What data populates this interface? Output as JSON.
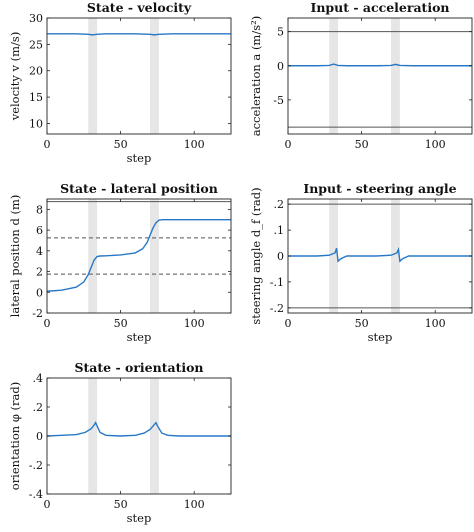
{
  "chart_data": [
    {
      "type": "line",
      "title": "State - velocity",
      "xlabel": "step",
      "ylabel": "velocity v (m/s)",
      "xlim": [
        0,
        125
      ],
      "ylim": [
        8,
        30
      ],
      "xticks": [
        0,
        50,
        100
      ],
      "yticks": [
        10,
        15,
        20,
        25,
        30
      ],
      "shaded": [
        [
          28,
          34
        ],
        [
          70,
          76
        ]
      ],
      "hlines": [],
      "series": [
        {
          "color": "#2878c8",
          "x": [
            0,
            10,
            20,
            28,
            31,
            34,
            40,
            50,
            60,
            70,
            73,
            76,
            85,
            100,
            110,
            125
          ],
          "y": [
            27.0,
            27.0,
            27.0,
            26.9,
            26.8,
            26.9,
            27.0,
            27.0,
            27.0,
            26.9,
            26.8,
            26.9,
            27.0,
            27.0,
            27.0,
            27.0
          ]
        }
      ]
    },
    {
      "type": "line",
      "title": "Input - acceleration",
      "xlabel": "",
      "ylabel": "acceleration a (m/s²)",
      "xlim": [
        0,
        125
      ],
      "ylim": [
        -10,
        7
      ],
      "xticks": [
        0,
        50,
        100
      ],
      "yticks": [
        -5,
        0,
        5
      ],
      "shaded": [
        [
          28,
          34
        ],
        [
          70,
          76
        ]
      ],
      "hlines": [
        {
          "y": 5,
          "style": "solid"
        },
        {
          "y": -9,
          "style": "solid"
        }
      ],
      "series": [
        {
          "color": "#2878c8",
          "x": [
            0,
            20,
            28,
            31,
            34,
            40,
            60,
            70,
            73,
            76,
            85,
            125
          ],
          "y": [
            0,
            0,
            0.05,
            0.25,
            0.05,
            0,
            0,
            0.05,
            0.2,
            0.05,
            0,
            0
          ]
        }
      ]
    },
    {
      "type": "line",
      "title": "State - lateral position",
      "xlabel": "step",
      "ylabel": "lateral position d (m)",
      "xlim": [
        0,
        125
      ],
      "ylim": [
        -2,
        9
      ],
      "xticks": [
        0,
        50,
        100
      ],
      "yticks": [
        -2,
        0,
        2,
        4,
        6,
        8
      ],
      "shaded": [
        [
          28,
          34
        ],
        [
          70,
          76
        ]
      ],
      "hlines": [
        {
          "y": 8.75,
          "style": "solid"
        },
        {
          "y": 5.25,
          "style": "dashed"
        },
        {
          "y": 1.75,
          "style": "dashed"
        }
      ],
      "series": [
        {
          "color": "#2878c8",
          "x": [
            0,
            10,
            20,
            25,
            28,
            30,
            32,
            34,
            36,
            40,
            50,
            60,
            65,
            68,
            70,
            72,
            74,
            76,
            78,
            85,
            100,
            125
          ],
          "y": [
            0.1,
            0.2,
            0.5,
            1.0,
            1.7,
            2.4,
            3.1,
            3.45,
            3.5,
            3.52,
            3.6,
            3.8,
            4.2,
            4.8,
            5.5,
            6.2,
            6.7,
            6.95,
            7.0,
            7.0,
            7.0,
            7.0
          ]
        }
      ]
    },
    {
      "type": "line",
      "title": "Input - steering angle",
      "xlabel": "step",
      "ylabel": "steering angle d_f (rad)",
      "xlim": [
        0,
        125
      ],
      "ylim": [
        -0.22,
        0.22
      ],
      "xticks": [
        0,
        50,
        100
      ],
      "yticks": [
        -0.2,
        -0.1,
        0,
        0.1,
        0.2
      ],
      "shaded": [
        [
          28,
          34
        ],
        [
          70,
          76
        ]
      ],
      "hlines": [
        {
          "y": 0.2,
          "style": "solid"
        },
        {
          "y": -0.2,
          "style": "solid"
        }
      ],
      "series": [
        {
          "color": "#2878c8",
          "x": [
            0,
            20,
            28,
            32,
            33,
            34,
            36,
            40,
            60,
            70,
            74,
            75,
            76,
            78,
            82,
            125
          ],
          "y": [
            0,
            0,
            0.003,
            0.012,
            0.03,
            -0.02,
            -0.01,
            0,
            0,
            0.003,
            0.012,
            0.025,
            -0.02,
            -0.01,
            0,
            0
          ]
        }
      ]
    },
    {
      "type": "line",
      "title": "State - orientation",
      "xlabel": "step",
      "ylabel": "orientation φ (rad)",
      "xlim": [
        0,
        125
      ],
      "ylim": [
        -0.4,
        0.4
      ],
      "xticks": [
        0,
        50,
        100
      ],
      "yticks": [
        -0.4,
        -0.2,
        0,
        0.2,
        0.4
      ],
      "shaded": [
        [
          28,
          34
        ],
        [
          70,
          76
        ]
      ],
      "hlines": [],
      "series": [
        {
          "color": "#2878c8",
          "x": [
            0,
            10,
            20,
            26,
            30,
            32,
            33,
            34,
            36,
            40,
            50,
            60,
            66,
            70,
            73,
            74,
            75,
            78,
            82,
            90,
            125
          ],
          "y": [
            0,
            0.005,
            0.01,
            0.025,
            0.05,
            0.075,
            0.092,
            0.07,
            0.025,
            0.005,
            0,
            0.005,
            0.02,
            0.045,
            0.08,
            0.092,
            0.07,
            0.02,
            0.005,
            0,
            0
          ]
        }
      ]
    }
  ]
}
